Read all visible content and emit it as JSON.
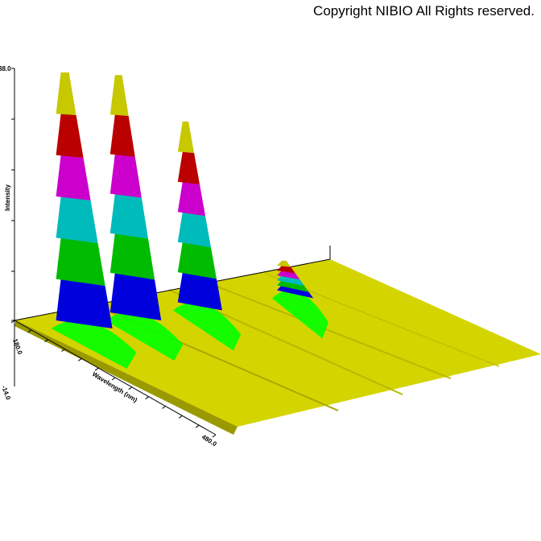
{
  "copyright": "Copyright NIBIO All Rights reserved.",
  "chart_data": {
    "type": "surface-3d",
    "zlabel": "Intensity",
    "ylabel": "Wavelength (nm)",
    "tick_labels": {
      "z_top": "38.0",
      "z_base": "180.0",
      "z_bottom": "-14.0",
      "wavelength_start": "180.0",
      "wavelength_end": "480.0"
    },
    "zlim": [
      -14,
      38
    ],
    "wavelength_range": [
      180,
      480
    ],
    "peaks": [
      {
        "position": 0.06,
        "height": 38,
        "depth": 0.0
      },
      {
        "position": 0.18,
        "height": 37,
        "depth": 0.2
      },
      {
        "position": 0.33,
        "height": 30,
        "depth": 0.45
      },
      {
        "position": 0.55,
        "height": 9,
        "depth": 0.75
      }
    ],
    "color_bands": [
      "#0000dd",
      "#00bb00",
      "#00bbbb",
      "#cc00cc",
      "#bb0000",
      "#c8c800"
    ],
    "floor_color": "#d4d400",
    "highlight_color": "#00ff00"
  }
}
